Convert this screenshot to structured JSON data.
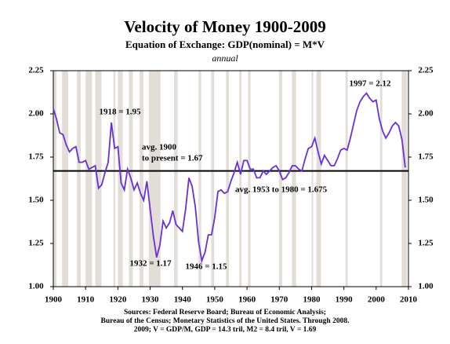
{
  "chart_data": {
    "type": "line",
    "title": "Velocity of Money 1900-2009",
    "subtitle": "Equation of Exchange: GDP(nominal) = M*V",
    "frequency_label": "annual",
    "source_lines": [
      "Sources: Federal Reserve Board; Bureau of Economic Analysis;",
      "Bureau of the Census; Monetary Statistics of the United States. Through 2008.",
      "2009; V = GDP/M, GDP = 14.3 tril, M2 = 8.4 tril, V = 1.69"
    ],
    "x": [
      1900,
      1901,
      1902,
      1903,
      1904,
      1905,
      1906,
      1907,
      1908,
      1909,
      1910,
      1911,
      1912,
      1913,
      1914,
      1915,
      1916,
      1917,
      1918,
      1919,
      1920,
      1921,
      1922,
      1923,
      1924,
      1925,
      1926,
      1927,
      1928,
      1929,
      1930,
      1931,
      1932,
      1933,
      1934,
      1935,
      1936,
      1937,
      1938,
      1939,
      1940,
      1941,
      1942,
      1943,
      1944,
      1945,
      1946,
      1947,
      1948,
      1949,
      1950,
      1951,
      1952,
      1953,
      1954,
      1955,
      1956,
      1957,
      1958,
      1959,
      1960,
      1961,
      1962,
      1963,
      1964,
      1965,
      1966,
      1967,
      1968,
      1969,
      1970,
      1971,
      1972,
      1973,
      1974,
      1975,
      1976,
      1977,
      1978,
      1979,
      1980,
      1981,
      1982,
      1983,
      1984,
      1985,
      1986,
      1987,
      1988,
      1989,
      1990,
      1991,
      1992,
      1993,
      1994,
      1995,
      1996,
      1997,
      1998,
      1999,
      2000,
      2001,
      2002,
      2003,
      2004,
      2005,
      2006,
      2007,
      2008,
      2009
    ],
    "series": [
      {
        "color": "#6a2fd6",
        "values": [
          2.03,
          1.97,
          1.89,
          1.88,
          1.82,
          1.78,
          1.8,
          1.81,
          1.72,
          1.72,
          1.73,
          1.68,
          1.69,
          1.7,
          1.57,
          1.59,
          1.66,
          1.72,
          1.95,
          1.8,
          1.81,
          1.6,
          1.56,
          1.68,
          1.63,
          1.56,
          1.6,
          1.54,
          1.5,
          1.61,
          1.45,
          1.29,
          1.17,
          1.24,
          1.38,
          1.34,
          1.37,
          1.44,
          1.36,
          1.34,
          1.32,
          1.45,
          1.63,
          1.58,
          1.46,
          1.26,
          1.15,
          1.2,
          1.3,
          1.3,
          1.4,
          1.55,
          1.56,
          1.54,
          1.55,
          1.61,
          1.66,
          1.72,
          1.65,
          1.73,
          1.73,
          1.68,
          1.68,
          1.63,
          1.63,
          1.67,
          1.65,
          1.67,
          1.69,
          1.7,
          1.67,
          1.62,
          1.63,
          1.66,
          1.7,
          1.7,
          1.68,
          1.67,
          1.74,
          1.8,
          1.81,
          1.86,
          1.78,
          1.71,
          1.76,
          1.73,
          1.7,
          1.7,
          1.74,
          1.79,
          1.8,
          1.79,
          1.86,
          1.94,
          2.02,
          2.07,
          2.1,
          2.12,
          2.09,
          2.07,
          2.08,
          1.97,
          1.9,
          1.86,
          1.89,
          1.93,
          1.95,
          1.93,
          1.85,
          1.69
        ]
      }
    ],
    "average": 1.67,
    "shaded_periods": [
      [
        1899.6,
        1901
      ],
      [
        1902.7,
        1904.6
      ],
      [
        1907.3,
        1908.5
      ],
      [
        1910,
        1912
      ],
      [
        1913,
        1914.9
      ],
      [
        1918.6,
        1919.2
      ],
      [
        1920,
        1921.5
      ],
      [
        1923.4,
        1924.6
      ],
      [
        1926.7,
        1927.9
      ],
      [
        1929.6,
        1933.2
      ],
      [
        1937.4,
        1938.5
      ],
      [
        1945,
        1945.8
      ],
      [
        1948.9,
        1949.8
      ],
      [
        1953.5,
        1954.4
      ],
      [
        1957.6,
        1958.3
      ],
      [
        1960.3,
        1961.1
      ],
      [
        1969.9,
        1970.9
      ],
      [
        1973.9,
        1975.2
      ],
      [
        1980,
        1980.5
      ],
      [
        1981.5,
        1982.9
      ],
      [
        1990.5,
        1991.2
      ],
      [
        2001.2,
        2001.9
      ],
      [
        2007.9,
        2009.5
      ]
    ],
    "shade_color": "#e3ddd8",
    "annotations": [
      {
        "lines": [
          "1918 = 1.95"
        ]
      },
      {
        "lines": [
          "1932 = 1.17"
        ]
      },
      {
        "lines": [
          "1946 = 1.15"
        ]
      },
      {
        "lines": [
          "1997 = 2.12"
        ]
      },
      {
        "lines": [
          "avg. 1900",
          "to present = 1.67"
        ]
      },
      {
        "lines": [
          "avg. 1953 to 1980 = 1.675"
        ]
      }
    ],
    "xlim": [
      1900,
      2010
    ],
    "xticks": [
      1900,
      1910,
      1920,
      1930,
      1940,
      1950,
      1960,
      1970,
      1980,
      1990,
      2000,
      2010
    ],
    "ylim": [
      1.0,
      2.25
    ],
    "yticks": [
      {
        "value": 1.0,
        "label": "1.00"
      },
      {
        "value": 1.25,
        "label": "1.25"
      },
      {
        "value": 1.5,
        "label": "1.50"
      },
      {
        "value": 1.75,
        "label": "1.75"
      },
      {
        "value": 2.0,
        "label": "2.00"
      },
      {
        "value": 2.25,
        "label": "2.25"
      }
    ],
    "y2lim": [
      1.0,
      2.25
    ],
    "y2ticks": [
      {
        "value": 1.0,
        "label": "1.00"
      },
      {
        "value": 1.25,
        "label": "1.25"
      },
      {
        "value": 1.5,
        "label": "1.50"
      },
      {
        "value": 1.75,
        "label": "1.75"
      },
      {
        "value": 2.0,
        "label": "2.00"
      },
      {
        "value": 2.25,
        "label": "2.25"
      }
    ]
  }
}
